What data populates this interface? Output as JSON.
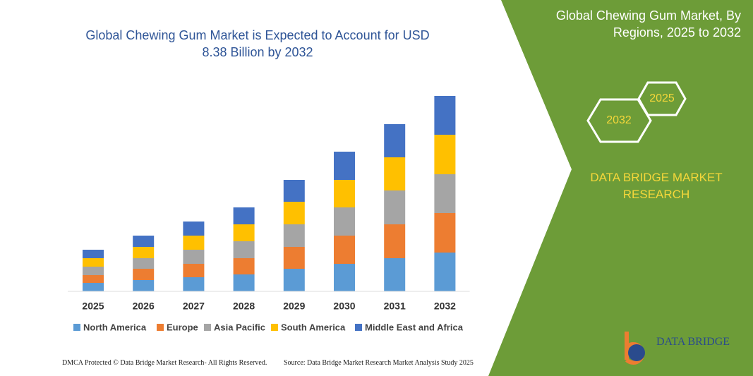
{
  "chart_data": {
    "type": "stacked-bar",
    "title": "Global Chewing Gum Market is Expected to Account for USD 8.38 Billion by 2032",
    "categories": [
      "2025",
      "2026",
      "2027",
      "2028",
      "2029",
      "2030",
      "2031",
      "2032"
    ],
    "series": [
      {
        "name": "North America",
        "color": "#5b9bd5",
        "values": [
          12,
          16,
          20,
          24,
          32,
          39,
          47,
          55
        ]
      },
      {
        "name": "Europe",
        "color": "#ed7d31",
        "values": [
          11,
          16,
          19,
          23,
          31,
          40,
          48,
          56
        ]
      },
      {
        "name": "Asia Pacific",
        "color": "#a5a5a5",
        "values": [
          12,
          15,
          20,
          24,
          32,
          40,
          48,
          55
        ]
      },
      {
        "name": "South America",
        "color": "#ffc000",
        "values": [
          12,
          16,
          20,
          24,
          32,
          39,
          47,
          56
        ]
      },
      {
        "name": "Middle East and Africa",
        "color": "#4472c4",
        "values": [
          12,
          16,
          20,
          24,
          31,
          40,
          47,
          55
        ]
      }
    ]
  },
  "panel": {
    "title": "Global Chewing Gum Market, By Regions, 2025 to 2032",
    "hex_small": "2025",
    "hex_large": "2032",
    "brand": "DATA BRIDGE MARKET RESEARCH",
    "logo": "DATA BRIDGE"
  },
  "footer": {
    "left": "DMCA Protected © Data Bridge Market Research- All Rights Reserved.",
    "right": "Source: Data Bridge Market Research Market Analysis Study 2025"
  }
}
